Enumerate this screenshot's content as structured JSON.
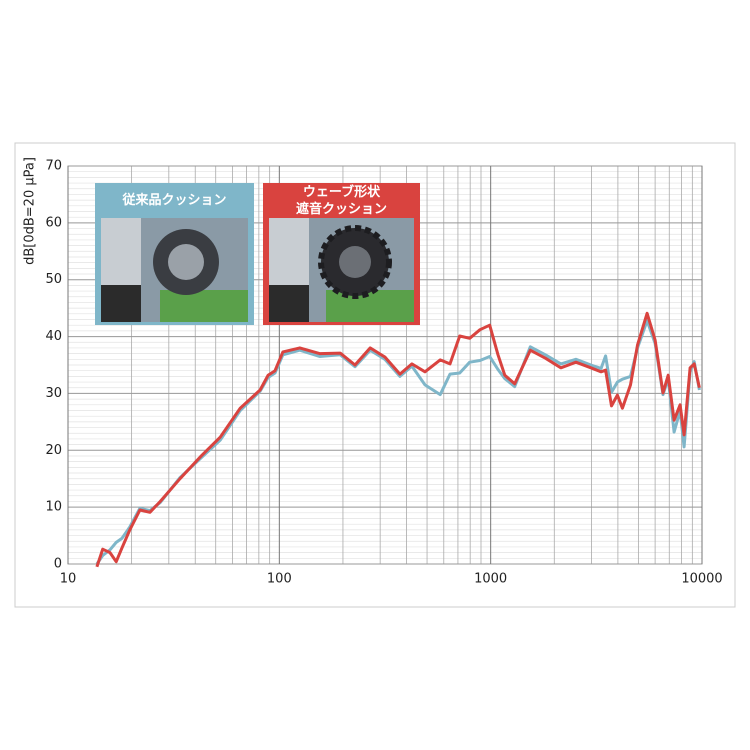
{
  "chart_data": {
    "type": "line",
    "y_label": "dB[0dB=20 μPa]",
    "log_x": true,
    "grid": true,
    "xlim": [
      10,
      10000
    ],
    "xticks": [
      10,
      100,
      1000,
      10000
    ],
    "ylim": [
      0,
      70
    ],
    "yticks": [
      0,
      10,
      20,
      30,
      40,
      50,
      60,
      70
    ],
    "x": [
      13.7,
      14.6,
      15.8,
      16.9,
      18,
      19.6,
      21.9,
      24.4,
      27.3,
      33.9,
      42.2,
      52.5,
      65.3,
      81.1,
      88.5,
      95.4,
      104,
      125,
      155,
      194,
      228,
      269,
      316,
      372,
      424,
      489,
      577,
      642,
      714,
      796,
      890,
      990,
      1083,
      1167,
      1300,
      1540,
      1815,
      2150,
      2530,
      2980,
      3330,
      3500,
      3730,
      3980,
      4200,
      4590,
      4950,
      5500,
      6000,
      6540,
      6920,
      7380,
      7880,
      8230,
      8780,
      9190,
      9720
    ],
    "series": [
      {
        "name": "従来品クッション",
        "color": "#7fb6c9",
        "values": [
          0,
          1.5,
          2.5,
          3.8,
          4.5,
          6.5,
          9.8,
          9.4,
          10.8,
          15.2,
          18.5,
          21.8,
          27,
          30.4,
          32.8,
          33.6,
          36.8,
          37.6,
          36.5,
          36.8,
          34.7,
          37.6,
          36,
          33,
          34.8,
          31.5,
          29.8,
          33.4,
          33.6,
          35.5,
          35.8,
          36.5,
          34.2,
          32.6,
          31.2,
          38.2,
          36.8,
          35.2,
          36,
          35,
          34.4,
          36.6,
          30.2,
          32,
          32.5,
          33,
          38,
          42.8,
          38.8,
          29.8,
          32.6,
          23.2,
          27,
          20.6,
          33.8,
          35.6,
          30.6
        ]
      },
      {
        "name": "ウェーブ形状\n遮音クッション",
        "color": "#d9433f",
        "values": [
          -0.5,
          2.6,
          2,
          0.4,
          2.8,
          6,
          9.5,
          9.1,
          11,
          15,
          18.8,
          22.3,
          27.4,
          30.6,
          33.2,
          34,
          37.3,
          38,
          37,
          37.1,
          35,
          38,
          36.4,
          33.4,
          35.2,
          33.8,
          35.9,
          35.2,
          40.1,
          39.7,
          41.2,
          42,
          36.8,
          33.2,
          31.7,
          37.6,
          36.2,
          34.5,
          35.5,
          34.5,
          33.8,
          34.1,
          27.8,
          29.7,
          27.4,
          31.5,
          38.5,
          44.1,
          39.4,
          30.1,
          33.2,
          25.3,
          28,
          22.7,
          34.5,
          35.2,
          31
        ]
      }
    ]
  }
}
